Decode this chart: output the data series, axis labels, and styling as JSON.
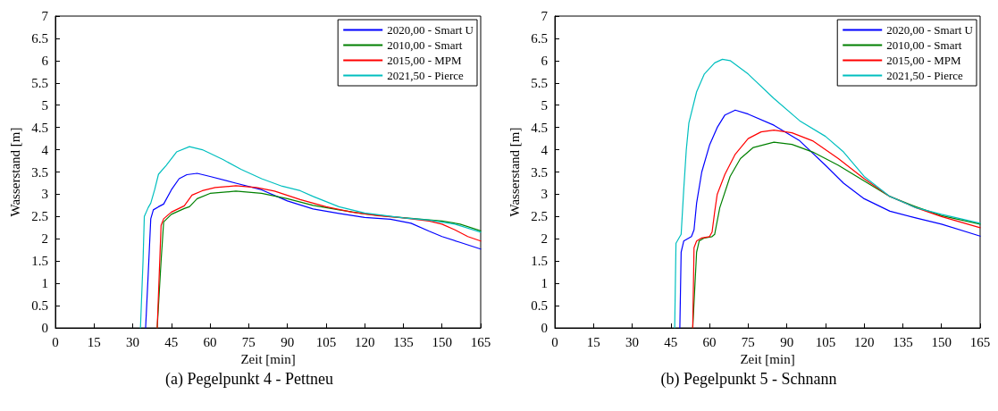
{
  "chart_data": [
    {
      "type": "line",
      "title": "(a) Pegelpunkt 4 - Pettneu",
      "xlabel": "Zeit [min]",
      "ylabel": "Wasserstand [m]",
      "xlim": [
        0,
        165
      ],
      "xticks": [
        0,
        15,
        30,
        45,
        60,
        75,
        90,
        105,
        120,
        135,
        150,
        165
      ],
      "ylim": [
        0,
        7
      ],
      "yticks": [
        0,
        0.5,
        1,
        1.5,
        2,
        2.5,
        3,
        3.5,
        4,
        4.5,
        5,
        5.5,
        6,
        6.5,
        7
      ],
      "grid": false,
      "legend": "top right",
      "marker": "none",
      "line_style": "solid",
      "series": [
        {
          "name": "2020,00 - Smart U",
          "color": "#0000ff",
          "x": [
            35,
            36,
            37,
            38,
            40,
            42,
            45,
            48,
            51,
            55,
            60,
            70,
            80,
            90,
            100,
            110,
            120,
            130,
            138,
            145,
            150,
            157,
            165
          ],
          "values": [
            0,
            1.2,
            2.45,
            2.65,
            2.72,
            2.78,
            3.1,
            3.35,
            3.44,
            3.47,
            3.4,
            3.25,
            3.1,
            2.85,
            2.67,
            2.57,
            2.48,
            2.44,
            2.35,
            2.17,
            2.05,
            1.92,
            1.77
          ]
        },
        {
          "name": "2010,00 - Smart",
          "color": "#008000",
          "x": [
            39.5,
            41,
            42,
            45,
            50,
            52,
            55,
            60,
            70,
            80,
            90,
            100,
            110,
            120,
            130,
            140,
            150,
            157,
            165
          ],
          "values": [
            0,
            1.5,
            2.38,
            2.55,
            2.68,
            2.72,
            2.9,
            3.02,
            3.07,
            3.02,
            2.9,
            2.75,
            2.65,
            2.56,
            2.5,
            2.45,
            2.4,
            2.33,
            2.18
          ]
        },
        {
          "name": "2015,00 - MPM",
          "color": "#ff0000",
          "x": [
            39.5,
            41,
            42,
            45,
            50,
            53,
            57,
            62,
            70,
            78,
            85,
            95,
            105,
            115,
            125,
            135,
            145,
            150,
            155,
            160,
            165
          ],
          "values": [
            0,
            2.3,
            2.45,
            2.6,
            2.74,
            2.98,
            3.08,
            3.15,
            3.19,
            3.15,
            3.07,
            2.88,
            2.72,
            2.6,
            2.52,
            2.47,
            2.4,
            2.33,
            2.2,
            2.05,
            1.95
          ]
        },
        {
          "name": "2021,50 - Pierce",
          "color": "#00bfbf",
          "x": [
            33,
            34,
            34.5,
            36,
            37,
            38.5,
            40,
            43,
            47,
            52,
            57,
            65,
            72,
            80,
            88,
            95,
            100,
            110,
            120,
            135,
            145,
            155,
            165
          ],
          "values": [
            0,
            1.5,
            2.5,
            2.7,
            2.8,
            3.1,
            3.45,
            3.65,
            3.95,
            4.07,
            4.0,
            3.78,
            3.56,
            3.35,
            3.18,
            3.08,
            2.95,
            2.72,
            2.58,
            2.47,
            2.42,
            2.33,
            2.15
          ]
        }
      ]
    },
    {
      "type": "line",
      "title": "(b) Pegelpunkt 5 - Schnann",
      "xlabel": "Zeit [min]",
      "ylabel": "Wasserstand [m]",
      "xlim": [
        0,
        165
      ],
      "xticks": [
        0,
        15,
        30,
        45,
        60,
        75,
        90,
        105,
        120,
        135,
        150,
        165
      ],
      "ylim": [
        0,
        7
      ],
      "yticks": [
        0,
        0.5,
        1,
        1.5,
        2,
        2.5,
        3,
        3.5,
        4,
        4.5,
        5,
        5.5,
        6,
        6.5,
        7
      ],
      "grid": false,
      "legend": "top right",
      "marker": "none",
      "line_style": "solid",
      "series": [
        {
          "name": "2020,00 - Smart U",
          "color": "#0000ff",
          "x": [
            48.5,
            49,
            50,
            53,
            54,
            55,
            57,
            60,
            63,
            66,
            70,
            75,
            85,
            95,
            105,
            112,
            120,
            130,
            140,
            150,
            165
          ],
          "values": [
            0,
            1.7,
            1.95,
            2.05,
            2.2,
            2.8,
            3.5,
            4.1,
            4.5,
            4.78,
            4.89,
            4.8,
            4.55,
            4.2,
            3.65,
            3.25,
            2.9,
            2.62,
            2.47,
            2.33,
            2.06
          ]
        },
        {
          "name": "2010,00 - Smart",
          "color": "#008000",
          "x": [
            53.5,
            55,
            56,
            58,
            61,
            62,
            64,
            68,
            72,
            77,
            85,
            92,
            100,
            110,
            120,
            130,
            140,
            150,
            165
          ],
          "values": [
            0,
            1.7,
            1.95,
            2.02,
            2.05,
            2.1,
            2.7,
            3.4,
            3.8,
            4.05,
            4.17,
            4.12,
            3.95,
            3.65,
            3.3,
            2.95,
            2.72,
            2.52,
            2.33
          ]
        },
        {
          "name": "2015,00 - MPM",
          "color": "#ff0000",
          "x": [
            53.5,
            54,
            55,
            57,
            60,
            61,
            62,
            63,
            66,
            70,
            75,
            80,
            85,
            92,
            100,
            110,
            120,
            130,
            140,
            150,
            165
          ],
          "values": [
            0,
            1.8,
            1.95,
            2.02,
            2.05,
            2.15,
            2.6,
            3.0,
            3.45,
            3.9,
            4.25,
            4.4,
            4.44,
            4.38,
            4.2,
            3.8,
            3.35,
            2.95,
            2.7,
            2.5,
            2.25
          ]
        },
        {
          "name": "2021,50 - Pierce",
          "color": "#00bfbf",
          "x": [
            46.5,
            47,
            48.5,
            49,
            50,
            51,
            52,
            55,
            58,
            62,
            65,
            68,
            75,
            85,
            95,
            105,
            112,
            120,
            130,
            140,
            150,
            165
          ],
          "values": [
            0,
            1.9,
            2.05,
            2.1,
            3.1,
            4.0,
            4.6,
            5.3,
            5.7,
            5.95,
            6.03,
            6.0,
            5.7,
            5.15,
            4.65,
            4.3,
            3.95,
            3.4,
            2.95,
            2.7,
            2.55,
            2.35
          ]
        }
      ]
    }
  ]
}
